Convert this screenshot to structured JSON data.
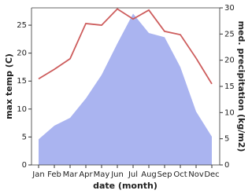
{
  "chart_data": {
    "type": "line",
    "xlabel": "date (month)",
    "ylabel": "max temp (C)",
    "y2label": "med. precipitation (kg/m2)",
    "categories": [
      "Jan",
      "Feb",
      "Mar",
      "Apr",
      "May",
      "Jun",
      "Jul",
      "Aug",
      "Sep",
      "Oct",
      "Nov",
      "Dec"
    ],
    "series": [
      {
        "name": "med. precipitation",
        "type": "area",
        "axis": "y2",
        "color": "#aab4f0",
        "values": [
          4.9,
          7.5,
          9.0,
          12.7,
          17.2,
          23.2,
          28.9,
          25.2,
          24.4,
          18.7,
          10.2,
          5.4
        ]
      },
      {
        "name": "max temp",
        "type": "line",
        "color": "#cd5c5c",
        "values": [
          15.4,
          17.1,
          19.0,
          25.3,
          25.0,
          27.9,
          26.1,
          27.7,
          23.9,
          23.3,
          19.1,
          14.5
        ]
      }
    ],
    "ylim": [
      0,
      28.1
    ],
    "yticks": [
      0,
      5,
      10,
      15,
      20,
      25
    ],
    "y2lim": [
      0,
      30
    ],
    "y2ticks": [
      0,
      5,
      10,
      15,
      20,
      25,
      30
    ]
  }
}
